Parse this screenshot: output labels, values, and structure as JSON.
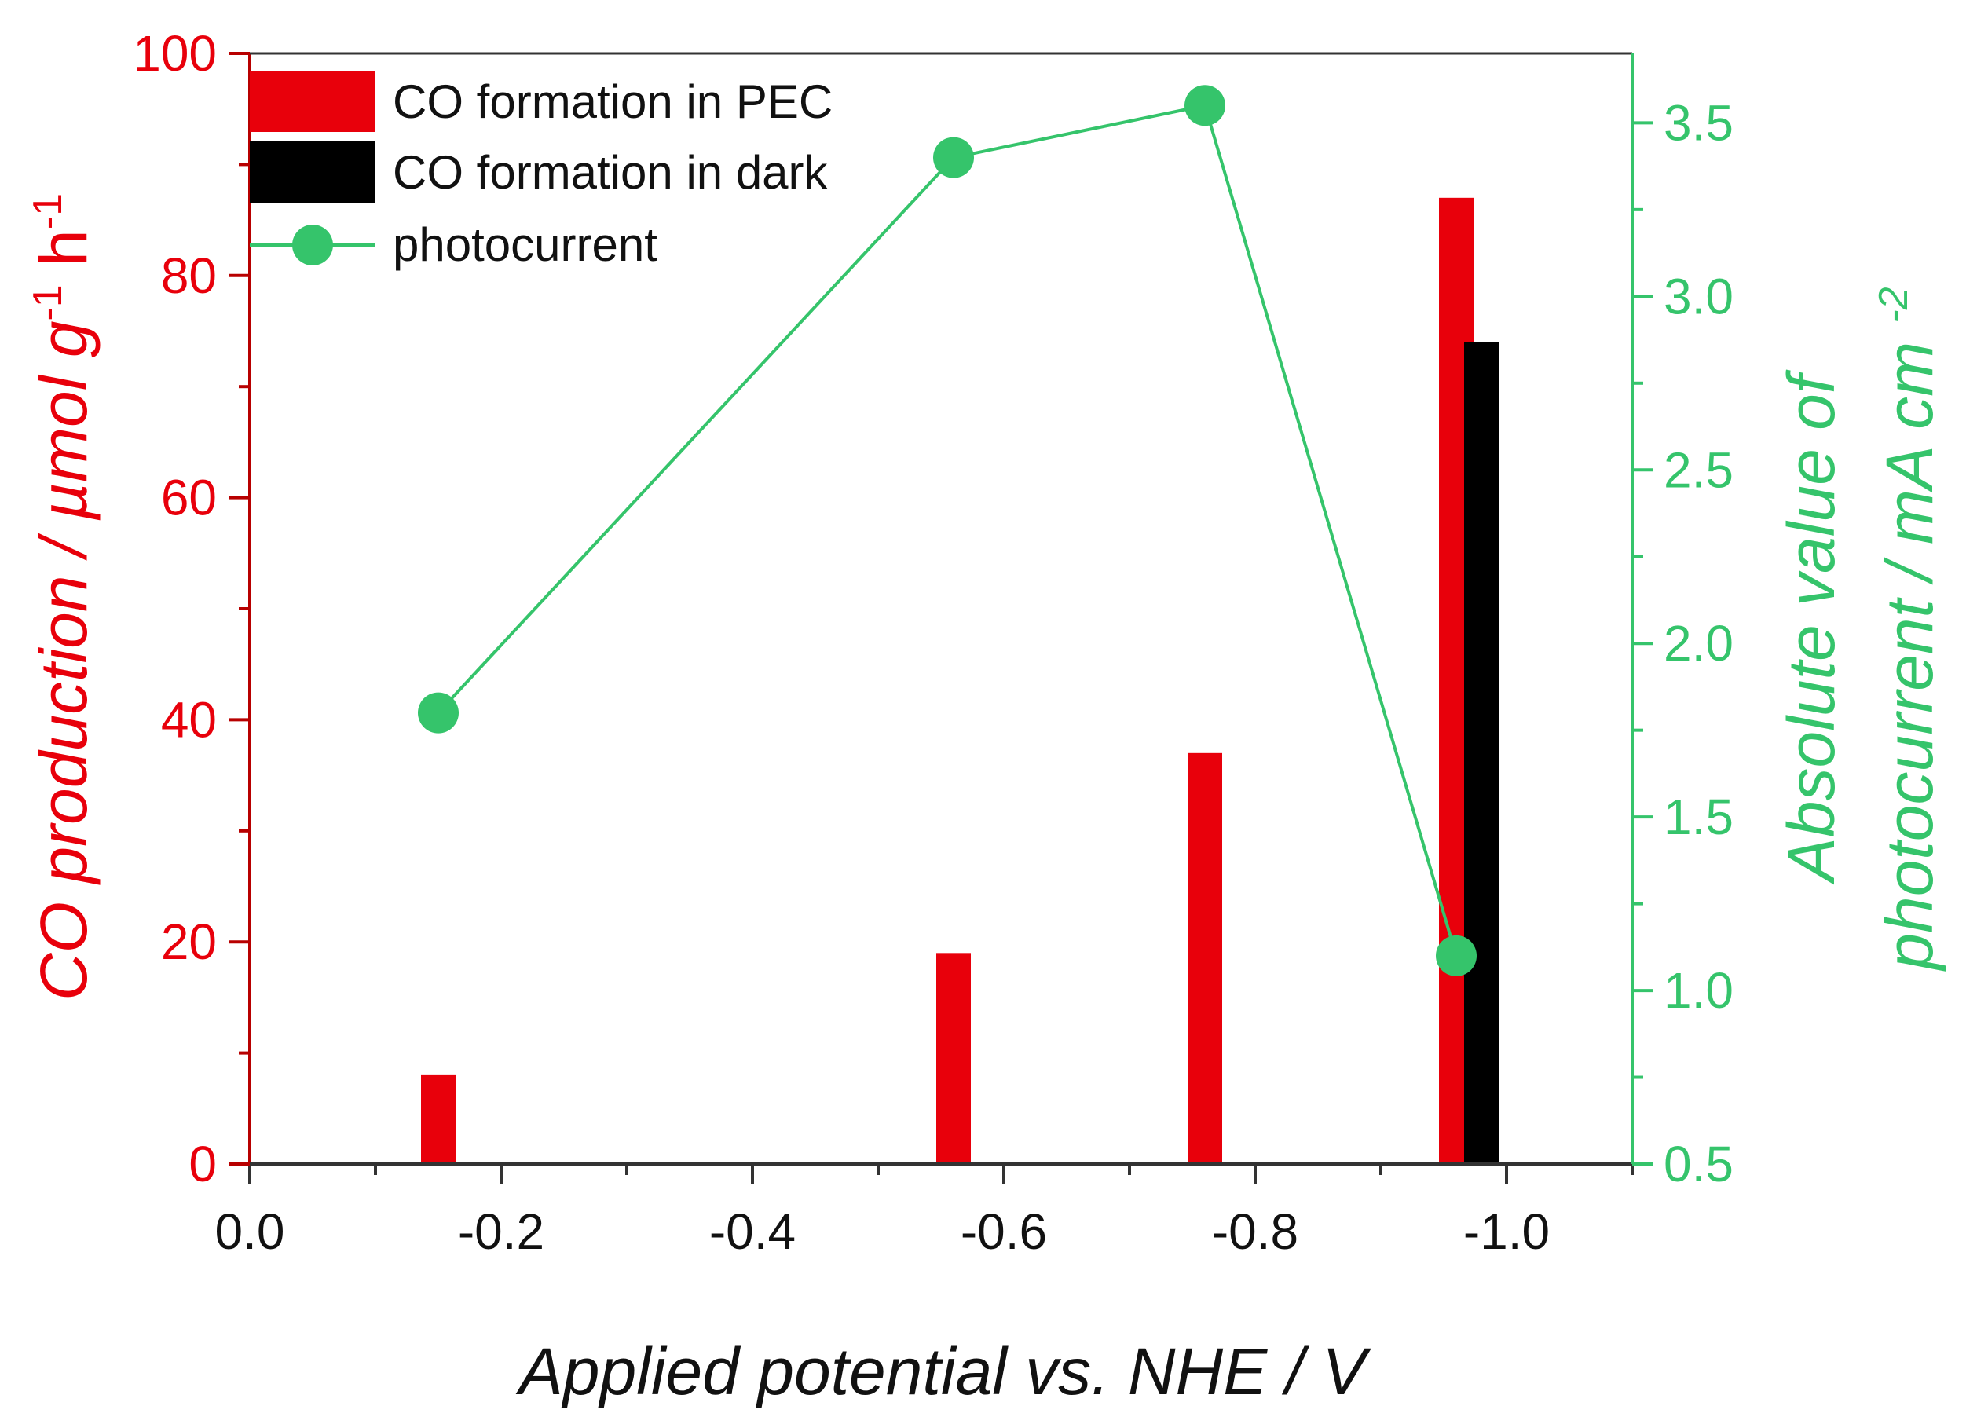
{
  "chart_data": {
    "type": "bar+line",
    "xlabel": "Applied potential vs. NHE / V",
    "xlim": [
      0.0,
      -1.1
    ],
    "xticks": [
      "0.0",
      "-0.2",
      "-0.4",
      "-0.6",
      "-0.8",
      "-1.0"
    ],
    "xtick_values": [
      0.0,
      -0.2,
      -0.4,
      -0.6,
      -0.8,
      -1.0
    ],
    "y_left": {
      "label_main": "CO production / µmol g",
      "label_sup1": "-1",
      "label_mid": " h",
      "label_sup2": "-1",
      "lim": [
        0,
        100
      ],
      "ticks": [
        "0",
        "20",
        "40",
        "60",
        "80",
        "100"
      ],
      "tick_values": [
        0,
        20,
        40,
        60,
        80,
        100
      ],
      "color": "#e8000b"
    },
    "y_right": {
      "label_line1": "Absolute value of",
      "label_line2_main": "photocurrent / mA cm",
      "label_line2_sup": "-2",
      "lim": [
        0.5,
        3.7
      ],
      "ticks": [
        "0.5",
        "1.0",
        "1.5",
        "2.0",
        "2.5",
        "3.0",
        "3.5"
      ],
      "tick_values": [
        0.5,
        1.0,
        1.5,
        2.0,
        2.5,
        3.0,
        3.5
      ],
      "color": "#35c46b"
    },
    "series": [
      {
        "name": "CO formation in PEC",
        "type": "bar",
        "axis": "left",
        "color": "#e8000b",
        "x": [
          -0.15,
          -0.56,
          -0.76,
          -0.96
        ],
        "values": [
          8,
          19,
          37,
          87
        ]
      },
      {
        "name": "CO formation in dark",
        "type": "bar",
        "axis": "left",
        "color": "#000000",
        "x": [
          -0.98
        ],
        "values": [
          74
        ]
      },
      {
        "name": "photocurrent",
        "type": "line",
        "axis": "right",
        "color": "#35c46b",
        "x": [
          -0.15,
          -0.56,
          -0.76,
          -0.96
        ],
        "values": [
          1.8,
          3.4,
          3.55,
          1.1
        ]
      }
    ],
    "legend_position": "top-left"
  }
}
